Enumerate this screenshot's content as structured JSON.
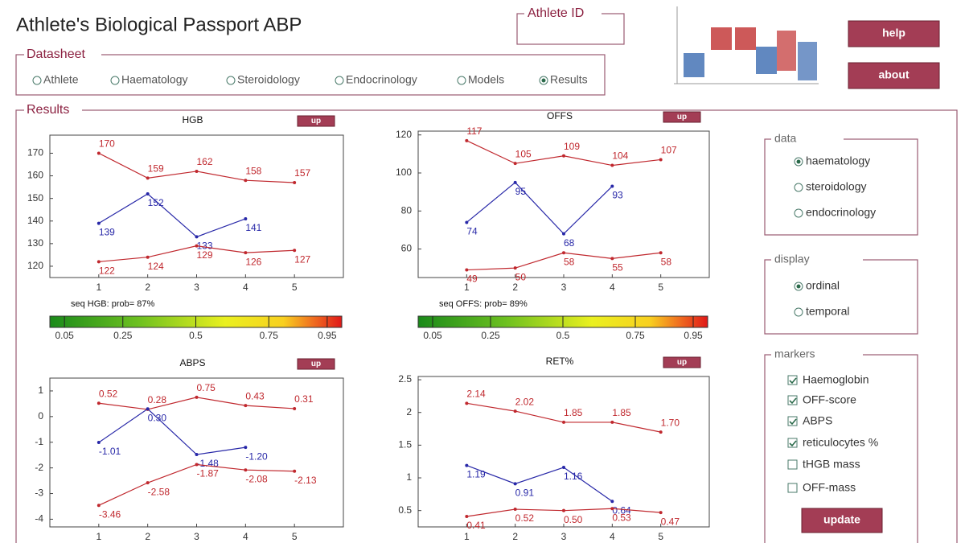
{
  "header": {
    "title": "Athlete's Biological Passport ABP",
    "athlete_id_label": "Athlete ID"
  },
  "datasheet": {
    "label": "Datasheet",
    "tabs": [
      "Athlete",
      "Haematology",
      "Steroidology",
      "Endocrinology",
      "Models",
      "Results"
    ],
    "selected": 5
  },
  "buttons": [
    "help",
    "about"
  ],
  "results_label": "Results",
  "charts": [
    {
      "type": "line",
      "title": "HGB",
      "button": "up",
      "x": [
        1,
        2,
        3,
        4,
        5
      ],
      "xlim": [
        0,
        6
      ],
      "xticks": [
        1,
        2,
        3,
        4,
        5
      ],
      "ylim": [
        115,
        178
      ],
      "yticks": [
        120,
        130,
        140,
        150,
        160,
        170
      ],
      "series": [
        {
          "color": "#c0282e",
          "values": [
            170,
            159,
            162,
            158,
            157
          ]
        },
        {
          "color": "#2828a8",
          "values": [
            139,
            152,
            133,
            141,
            null
          ]
        },
        {
          "color": "#c0282e",
          "values": [
            122,
            124,
            129,
            126,
            127
          ]
        }
      ],
      "caption": "seq HGB: prob= 87%",
      "colorbar": {
        "lim": [
          0,
          1
        ],
        "ticks": [
          0.05,
          0.25,
          0.5,
          0.75,
          0.95
        ]
      }
    },
    {
      "type": "line",
      "title": "OFFS",
      "button": "up",
      "x": [
        1,
        2,
        3,
        4,
        5
      ],
      "xlim": [
        0,
        6
      ],
      "xticks": [
        1,
        2,
        3,
        4,
        5
      ],
      "ylim": [
        45,
        122
      ],
      "yticks": [
        60,
        80,
        100,
        120
      ],
      "series": [
        {
          "color": "#c0282e",
          "values": [
            117,
            105,
            109,
            104,
            107
          ]
        },
        {
          "color": "#2828a8",
          "values": [
            74,
            95,
            68,
            93,
            null
          ]
        },
        {
          "color": "#c0282e",
          "values": [
            49,
            50,
            58,
            55,
            58
          ]
        }
      ],
      "caption": "seq OFFS: prob= 89%",
      "colorbar": {
        "lim": [
          0,
          1
        ],
        "ticks": [
          0.05,
          0.25,
          0.5,
          0.75,
          0.95
        ]
      }
    },
    {
      "type": "line",
      "title": "ABPS",
      "button": "up",
      "x": [
        1,
        2,
        3,
        4,
        5
      ],
      "xlim": [
        0,
        6
      ],
      "xticks": [
        1,
        2,
        3,
        4,
        5
      ],
      "ylim": [
        -4.3,
        1.5
      ],
      "yticks": [
        -4,
        -3,
        -2,
        -1,
        0,
        1
      ],
      "series": [
        {
          "color": "#c0282e",
          "values": [
            0.52,
            0.28,
            0.75,
            0.43,
            0.31
          ]
        },
        {
          "color": "#2828a8",
          "values": [
            -1.01,
            0.3,
            -1.48,
            -1.2,
            null
          ],
          "value_labels": [
            "-1.01",
            "0.30",
            "-1.48",
            "-1.20",
            null
          ]
        },
        {
          "color": "#c0282e",
          "values": [
            -3.46,
            -2.58,
            -1.87,
            -2.08,
            -2.13
          ]
        }
      ]
    },
    {
      "type": "line",
      "title": "RET%",
      "button": "up",
      "x": [
        1,
        2,
        3,
        4,
        5
      ],
      "xlim": [
        0,
        6
      ],
      "xticks": [
        1,
        2,
        3,
        4,
        5
      ],
      "ylim": [
        0.25,
        2.55
      ],
      "yticks": [
        0.5,
        1,
        1.5,
        2,
        2.5
      ],
      "series": [
        {
          "color": "#c0282e",
          "values": [
            2.14,
            2.02,
            1.85,
            1.85,
            1.7
          ],
          "value_labels": [
            "2.14",
            "2.02",
            "1.85",
            "1.85",
            "1.70"
          ]
        },
        {
          "color": "#2828a8",
          "values": [
            1.19,
            0.91,
            1.16,
            0.64,
            null
          ]
        },
        {
          "color": "#c0282e",
          "values": [
            0.41,
            0.52,
            0.5,
            0.53,
            0.47
          ],
          "value_labels": [
            "0.41",
            "0.52",
            "0.50",
            "0.53",
            "0.47"
          ]
        }
      ]
    }
  ],
  "data_panel": {
    "label": "data",
    "options": [
      "haematology",
      "steroidology",
      "endocrinology"
    ],
    "selected": 0
  },
  "display_panel": {
    "label": "display",
    "options": [
      "ordinal",
      "temporal"
    ],
    "selected": 0
  },
  "markers_panel": {
    "label": "markers",
    "items": [
      {
        "label": "Haemoglobin",
        "checked": true
      },
      {
        "label": "OFF-score",
        "checked": true
      },
      {
        "label": "ABPS",
        "checked": true
      },
      {
        "label": "reticulocytes %",
        "checked": true
      },
      {
        "label": "tHGB mass",
        "checked": false
      },
      {
        "label": "OFF-mass",
        "checked": false
      }
    ],
    "button": "update"
  }
}
